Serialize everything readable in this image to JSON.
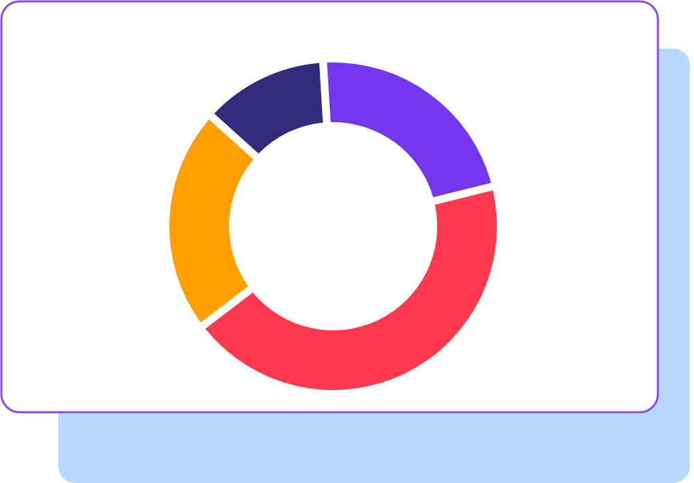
{
  "chart_data": {
    "type": "donut",
    "categories": [
      null,
      null,
      null,
      null
    ],
    "values": [
      22,
      44,
      22,
      12
    ],
    "colors": [
      "#7436ee",
      "#ff384e",
      "#ff9f00",
      "#332a7c"
    ],
    "legend": false
  }
}
